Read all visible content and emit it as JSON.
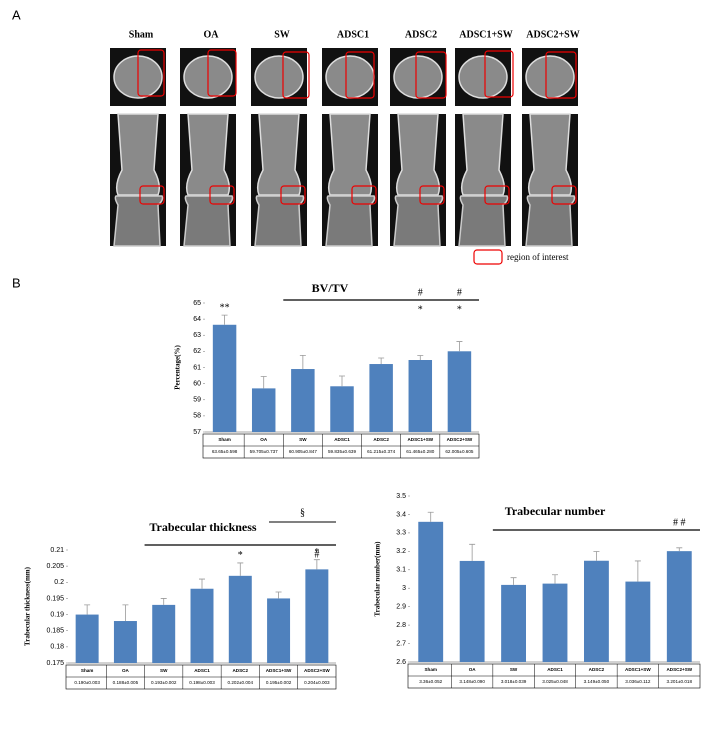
{
  "panel_a": {
    "label": "A",
    "columns": [
      "Sham",
      "OA",
      "SW",
      "ADSC1",
      "ADSC2",
      "ADSC1+SW",
      "ADSC2+SW"
    ],
    "legend": "region of interest"
  },
  "panel_b_label": "B",
  "chart_data": [
    {
      "type": "bar",
      "title": "BV/TV",
      "ylabel": "Percentage(%)",
      "color": "#4f81bd",
      "categories": [
        "Sham",
        "OA",
        "SW",
        "ADSC1",
        "ADSC2",
        "ADSC1+SW",
        "ADSC2+SW"
      ],
      "values": [
        63.65,
        59.705,
        60.905,
        59.835,
        61.215,
        61.465,
        62.005
      ],
      "errors": [
        0.598,
        0.737,
        0.847,
        0.639,
        0.374,
        0.28,
        0.605
      ],
      "value_labels": [
        "63.65±0.598",
        "59.705±0.737",
        "60.905±0.847",
        "59.835±0.639",
        "61.215±0.374",
        "61.465±0.280",
        "62.005±0.605"
      ],
      "ylim": [
        57,
        65
      ],
      "yticks": [
        57,
        58,
        59,
        60,
        61,
        62,
        63,
        64,
        65
      ],
      "line": {
        "from": "SW",
        "to": "ADSC2+SW"
      },
      "above_bar": [
        {
          "text": "**",
          "category": "Sham"
        }
      ],
      "above_line": [
        {
          "text": "#",
          "category": "ADSC1+SW"
        },
        {
          "text": "#",
          "category": "ADSC2+SW"
        }
      ],
      "below_line": [
        {
          "text": "*",
          "category": "ADSC1+SW"
        },
        {
          "text": "*",
          "category": "ADSC2+SW"
        }
      ]
    },
    {
      "type": "bar",
      "title": "Trabecular thickness",
      "ylabel": "Trabecular thickness(mm)",
      "color": "#4f81bd",
      "categories": [
        "Sham",
        "OA",
        "SW",
        "ADSC1",
        "ADSC2",
        "ADSC1+SW",
        "ADSC2+SW"
      ],
      "values": [
        0.19,
        0.188,
        0.193,
        0.198,
        0.202,
        0.195,
        0.204
      ],
      "errors": [
        0.003,
        0.005,
        0.002,
        0.003,
        0.004,
        0.002,
        0.003
      ],
      "value_labels": [
        "0.190±0.003",
        "0.188±0.005",
        "0.193±0.002",
        "0.198±0.003",
        "0.202±0.004",
        "0.195±0.002",
        "0.204±0.003"
      ],
      "ylim": [
        0.175,
        0.21
      ],
      "yticks": [
        0.175,
        0.18,
        0.185,
        0.19,
        0.195,
        0.2,
        0.205,
        0.21
      ],
      "line": {
        "from": "SW",
        "to": "ADSC2+SW"
      },
      "short_line": {
        "from": "ADSC1+SW",
        "to": "ADSC2+SW",
        "text": "§"
      },
      "above_bar": [
        {
          "text": "*",
          "category": "ADSC2"
        },
        {
          "text": "*",
          "category": "ADSC2+SW"
        }
      ],
      "below_line": [
        {
          "text": "#",
          "category": "ADSC2+SW"
        }
      ]
    },
    {
      "type": "bar",
      "title": "Trabecular number",
      "ylabel": "Trabecular number(mm)",
      "color": "#4f81bd",
      "categories": [
        "Sham",
        "OA",
        "SW",
        "ADSC1",
        "ADSC2",
        "ADSC1+SW",
        "ADSC2+SW"
      ],
      "values": [
        3.36,
        3.148,
        3.018,
        3.025,
        3.149,
        3.036,
        3.201
      ],
      "errors": [
        0.052,
        0.09,
        0.039,
        0.048,
        0.05,
        0.112,
        0.018
      ],
      "value_labels": [
        "3.36±0.052",
        "3.148±0.090",
        "3.018±0.039",
        "3.025±0.048",
        "3.149±0.050",
        "3.036±0.112",
        "3.201±0.018"
      ],
      "ylim": [
        2.6,
        3.5
      ],
      "yticks": [
        2.6,
        2.7,
        2.8,
        2.9,
        3,
        3.1,
        3.2,
        3.3,
        3.4,
        3.5
      ],
      "line": {
        "from": "SW",
        "to": "ADSC2+SW"
      },
      "above_line": [
        {
          "text": "# #",
          "category": "ADSC2+SW"
        }
      ]
    }
  ]
}
